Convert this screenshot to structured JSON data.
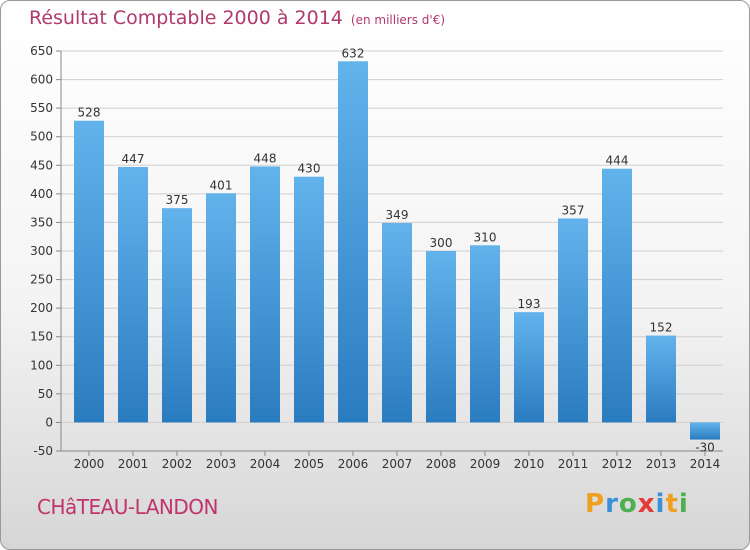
{
  "chart_data": {
    "type": "bar",
    "title": "Résultat Comptable 2000 à 2014",
    "subtitle": "(en milliers d'€)",
    "categories": [
      "2000",
      "2001",
      "2002",
      "2003",
      "2004",
      "2005",
      "2006",
      "2007",
      "2008",
      "2009",
      "2010",
      "2011",
      "2012",
      "2013",
      "2014"
    ],
    "values": [
      528,
      447,
      375,
      401,
      448,
      430,
      632,
      349,
      300,
      310,
      193,
      357,
      444,
      152,
      -30
    ],
    "yticks": [
      -50,
      0,
      50,
      100,
      150,
      200,
      250,
      300,
      350,
      400,
      450,
      500,
      550,
      600,
      650
    ],
    "ylim": [
      -50,
      650
    ],
    "grid": true,
    "xlabel": "",
    "ylabel": ""
  },
  "place_name": "CHâTEAU-LANDON",
  "logo": {
    "letters": [
      "P",
      "r",
      "o",
      "x",
      "i",
      "t",
      "i"
    ],
    "colors": [
      "#f0a020",
      "#3b8fd6",
      "#4caf50",
      "#e53935",
      "#3b8fd6",
      "#f0a020",
      "#4caf50"
    ]
  },
  "colors": {
    "bar_light": "#62b3ec",
    "bar_dark": "#2a7cc0",
    "grid": "#cfcfcf",
    "accent": "#b03a6b"
  }
}
